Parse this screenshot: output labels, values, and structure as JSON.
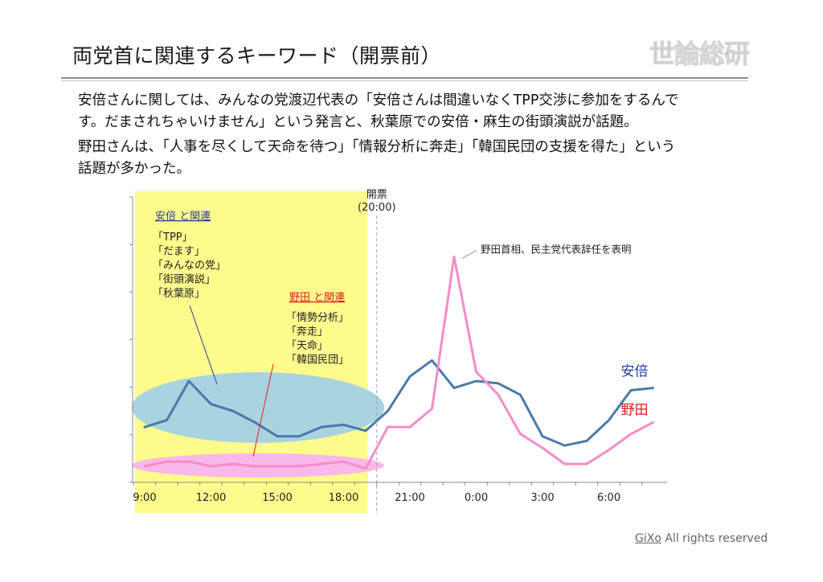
{
  "slide": {
    "title": "両党首に関連するキーワード（開票前）",
    "desc_lines": [
      "安倍さんに関しては、みんなの党渡辺代表の「安倍さんは間違いなくTPP交渉に参加をするんで",
      "す。だまされちゃいけません」という発言と、秋葉原での安倍・麻生の街頭演説が話題。",
      "野田さんは、「人事を尽くして天命を待つ」「情報分析に奔走」「韓国民団の支援を得た」という",
      "話題が多かった。"
    ],
    "footer_brand": "GiXo",
    "footer_rest": " All rights reserved",
    "logo_text": "世論総研"
  },
  "colors": {
    "abe": "#4a7aab",
    "noda": "#f48cc8",
    "yellow_region": "#fdfb8c",
    "abe_ellipse": "#a9d3df",
    "noda_ellipse": "#f8b8ea",
    "annotation_abe": "#2b3fa0",
    "annotation_noda": "#e02020",
    "label_abe": "#1f3f9a",
    "label_noda": "#e01818"
  },
  "chart_data": {
    "type": "line",
    "x": [
      "9:00",
      "10:00",
      "11:00",
      "12:00",
      "13:00",
      "14:00",
      "15:00",
      "16:00",
      "17:00",
      "18:00",
      "19:00",
      "20:00",
      "21:00",
      "22:00",
      "23:00",
      "0:00",
      "1:00",
      "2:00",
      "3:00",
      "4:00",
      "5:00",
      "6:00",
      "7:00",
      "8:00"
    ],
    "x_tick_labels": [
      "9:00",
      "12:00",
      "15:00",
      "18:00",
      "21:00",
      "0:00",
      "3:00",
      "6:00"
    ],
    "series": [
      {
        "name": "安倍",
        "color": "#4a7aab",
        "values": [
          1.2,
          1.35,
          2.2,
          1.7,
          1.55,
          1.3,
          1.0,
          1.0,
          1.2,
          1.25,
          1.12,
          1.55,
          2.3,
          2.65,
          2.05,
          2.2,
          2.15,
          1.9,
          1.0,
          0.8,
          0.9,
          1.35,
          2.0,
          2.05
        ]
      },
      {
        "name": "野田",
        "color": "#f48cc8",
        "values": [
          0.35,
          0.45,
          0.45,
          0.35,
          0.4,
          0.35,
          0.35,
          0.35,
          0.4,
          0.45,
          0.3,
          1.2,
          1.2,
          1.6,
          4.9,
          2.4,
          1.9,
          1.05,
          0.75,
          0.4,
          0.4,
          0.7,
          1.05,
          1.3
        ]
      }
    ],
    "ylim": [
      0,
      6.2
    ],
    "grid": false,
    "markers": [
      {
        "label": "開票",
        "sublabel": "(20:00)"
      }
    ],
    "annotations": {
      "peak_note": "野田首相、民主党代表辞任を表明",
      "abe_box_title": "安倍 と関連",
      "abe_keywords": [
        "「TPP」",
        "「だます」",
        "「みんなの党」",
        "「街頭演説」",
        "「秋葉原」"
      ],
      "noda_box_title": "野田 と関連",
      "noda_keywords": [
        "「情勢分析」",
        "「奔走」",
        "「天命」",
        "「韓国民団」"
      ],
      "series_label_abe": "安倍",
      "series_label_noda": "野田"
    }
  }
}
